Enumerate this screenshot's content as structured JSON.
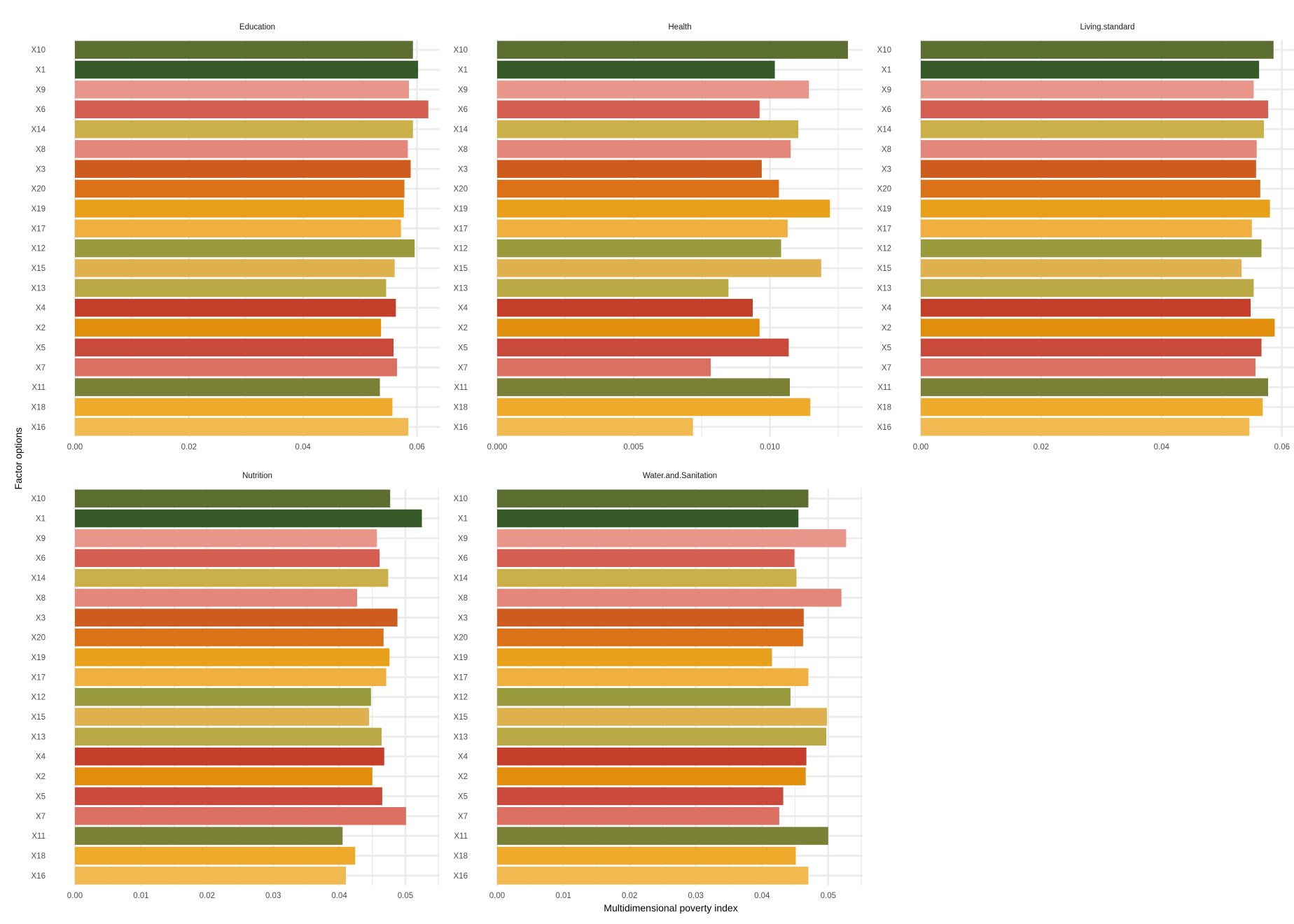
{
  "figure": {
    "xlabel": "Multidimensional poverty index",
    "ylabel": "Factor options"
  },
  "chart_data": [
    {
      "type": "bar",
      "orientation": "horizontal",
      "title": "Education",
      "xlim": [
        0,
        0.064
      ],
      "ticks": [
        0.0,
        0.02,
        0.04,
        0.06
      ],
      "tick_labels": [
        "0.00",
        "0.02",
        "0.04",
        "0.06"
      ],
      "grid": true,
      "categories": [
        "X10",
        "X1",
        "X9",
        "X6",
        "X14",
        "X8",
        "X3",
        "X20",
        "X19",
        "X17",
        "X12",
        "X15",
        "X13",
        "X4",
        "X2",
        "X5",
        "X7",
        "X11",
        "X18",
        "X16"
      ],
      "values": [
        0.0593,
        0.0602,
        0.0586,
        0.062,
        0.0593,
        0.0584,
        0.0589,
        0.0578,
        0.0577,
        0.0572,
        0.0596,
        0.0561,
        0.0546,
        0.0563,
        0.0537,
        0.0559,
        0.0565,
        0.0535,
        0.0557,
        0.0585
      ]
    },
    {
      "type": "bar",
      "orientation": "horizontal",
      "title": "Health",
      "xlim": [
        0,
        0.0134
      ],
      "ticks": [
        0.0,
        0.005,
        0.01
      ],
      "tick_labels": [
        "0.000",
        "0.005",
        "0.010"
      ],
      "grid": true,
      "categories": [
        "X10",
        "X1",
        "X9",
        "X6",
        "X14",
        "X8",
        "X3",
        "X20",
        "X19",
        "X17",
        "X12",
        "X15",
        "X13",
        "X4",
        "X2",
        "X5",
        "X7",
        "X11",
        "X18",
        "X16"
      ],
      "values": [
        0.01286,
        0.01018,
        0.01143,
        0.00962,
        0.01104,
        0.01076,
        0.0097,
        0.01033,
        0.0122,
        0.01065,
        0.01041,
        0.01188,
        0.00848,
        0.00937,
        0.00962,
        0.01069,
        0.00783,
        0.01073,
        0.01148,
        0.00718
      ]
    },
    {
      "type": "bar",
      "orientation": "horizontal",
      "title": "Living.standard",
      "xlim": [
        0,
        0.062
      ],
      "ticks": [
        0.0,
        0.02,
        0.04,
        0.06
      ],
      "tick_labels": [
        "0.00",
        "0.02",
        "0.04",
        "0.06"
      ],
      "grid": true,
      "categories": [
        "X10",
        "X1",
        "X9",
        "X6",
        "X14",
        "X8",
        "X3",
        "X20",
        "X19",
        "X17",
        "X12",
        "X15",
        "X13",
        "X4",
        "X2",
        "X5",
        "X7",
        "X11",
        "X18",
        "X16"
      ],
      "values": [
        0.0586,
        0.0562,
        0.0553,
        0.0577,
        0.057,
        0.0558,
        0.0557,
        0.0564,
        0.058,
        0.055,
        0.0566,
        0.0533,
        0.0553,
        0.0548,
        0.0588,
        0.0566,
        0.0556,
        0.0577,
        0.0568,
        0.0546
      ]
    },
    {
      "type": "bar",
      "orientation": "horizontal",
      "title": "Nutrition",
      "xlim": [
        0,
        0.0552
      ],
      "ticks": [
        0.0,
        0.01,
        0.02,
        0.03,
        0.04,
        0.05
      ],
      "tick_labels": [
        "0.00",
        "0.01",
        "0.02",
        "0.03",
        "0.04",
        "0.05"
      ],
      "grid": true,
      "categories": [
        "X10",
        "X1",
        "X9",
        "X6",
        "X14",
        "X8",
        "X3",
        "X20",
        "X19",
        "X17",
        "X12",
        "X15",
        "X13",
        "X4",
        "X2",
        "X5",
        "X7",
        "X11",
        "X18",
        "X16"
      ],
      "values": [
        0.0477,
        0.0525,
        0.0457,
        0.0461,
        0.0474,
        0.0427,
        0.0488,
        0.0467,
        0.0476,
        0.0471,
        0.0448,
        0.0445,
        0.0464,
        0.0468,
        0.045,
        0.0465,
        0.0501,
        0.0405,
        0.0424,
        0.041
      ]
    },
    {
      "type": "bar",
      "orientation": "horizontal",
      "title": "Water.and.Sanitation",
      "xlim": [
        0,
        0.0552
      ],
      "ticks": [
        0.0,
        0.01,
        0.02,
        0.03,
        0.04,
        0.05
      ],
      "tick_labels": [
        "0.00",
        "0.01",
        "0.02",
        "0.03",
        "0.04",
        "0.05"
      ],
      "grid": true,
      "categories": [
        "X10",
        "X1",
        "X9",
        "X6",
        "X14",
        "X8",
        "X3",
        "X20",
        "X19",
        "X17",
        "X12",
        "X15",
        "X13",
        "X4",
        "X2",
        "X5",
        "X7",
        "X11",
        "X18",
        "X16"
      ],
      "values": [
        0.047,
        0.0455,
        0.0527,
        0.0449,
        0.0452,
        0.052,
        0.0463,
        0.0462,
        0.0415,
        0.047,
        0.0443,
        0.0498,
        0.0497,
        0.0467,
        0.0466,
        0.0432,
        0.0426,
        0.05,
        0.0451,
        0.047
      ]
    }
  ],
  "colors": {
    "X10": "#5b6e30",
    "X1": "#355a27",
    "X9": "#e8958a",
    "X6": "#d45e50",
    "X14": "#cbaf48",
    "X8": "#e5867a",
    "X3": "#ce5c1f",
    "X20": "#dc7218",
    "X19": "#e8a01b",
    "X17": "#f0b040",
    "X12": "#999a3c",
    "X15": "#dfb14e",
    "X13": "#b9a843",
    "X4": "#c43e2a",
    "X2": "#e08e0b",
    "X5": "#c94a3b",
    "X7": "#db6f62",
    "X11": "#7a8136",
    "X18": "#eeaa2a",
    "X16": "#f1ba50",
    "grid": "#ebebeb",
    "text": "#4d4d4d"
  }
}
